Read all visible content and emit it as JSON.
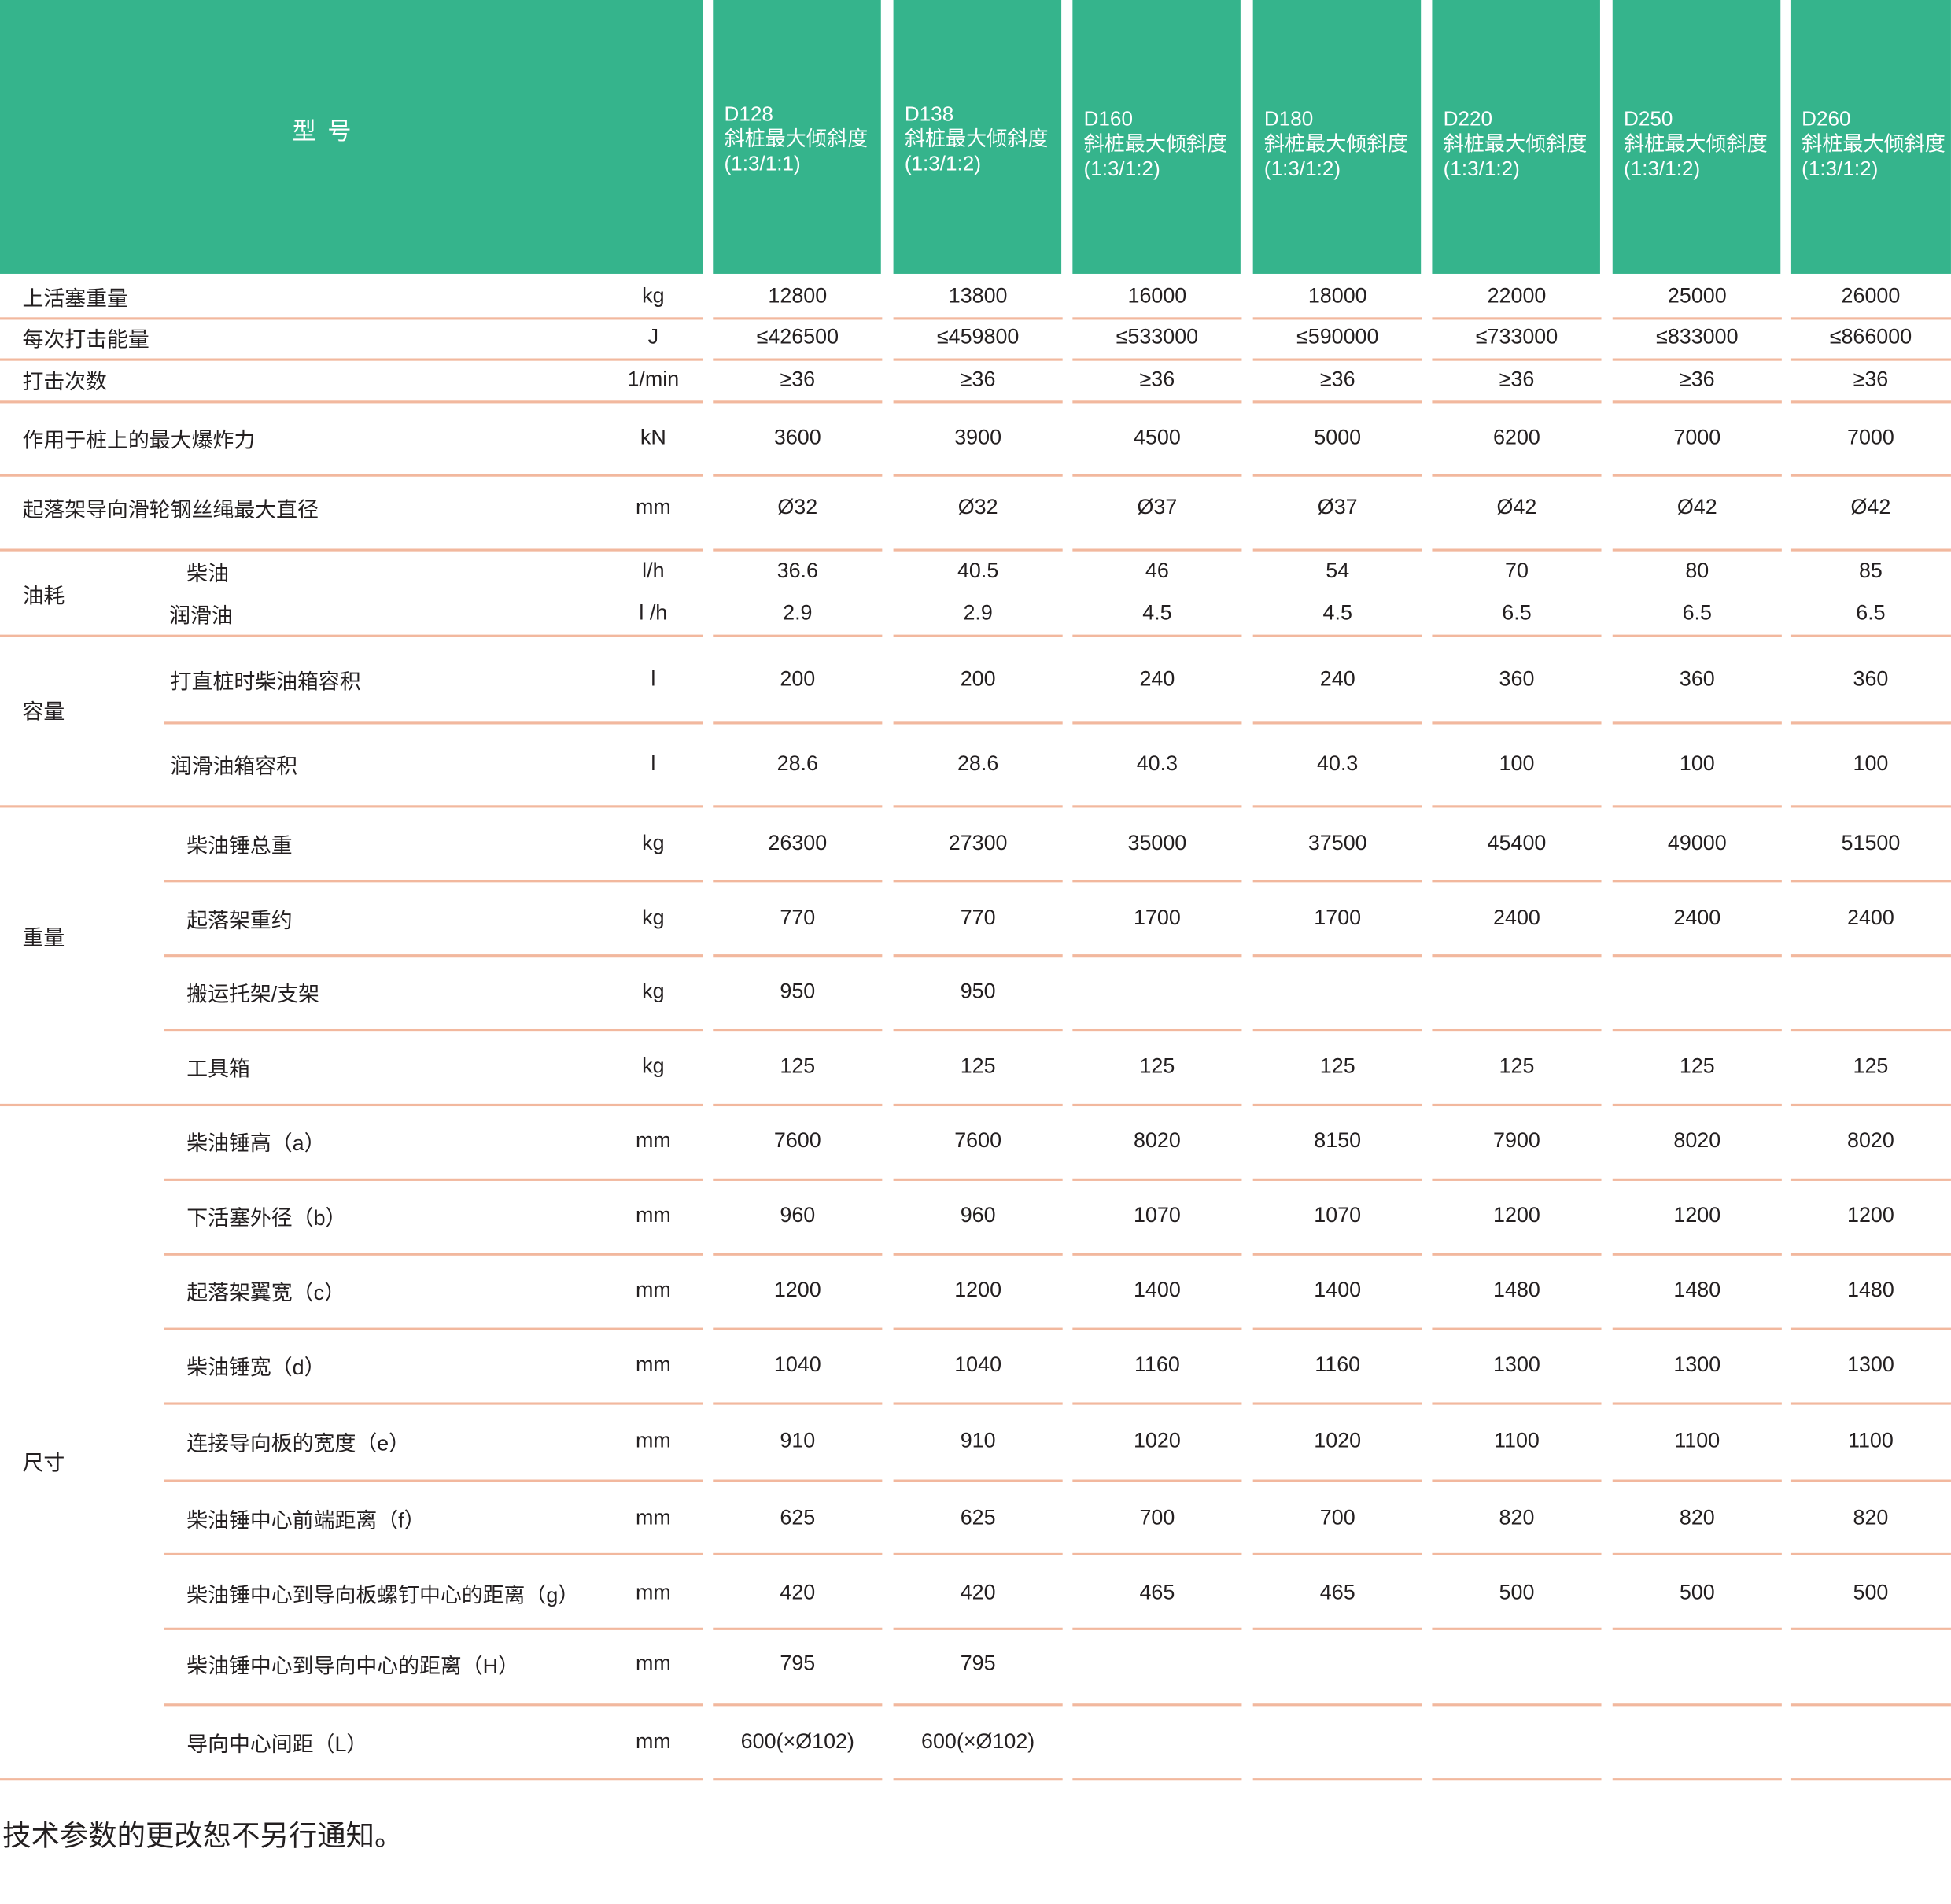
{
  "header": {
    "title": "型 号",
    "models": [
      {
        "name": "D128",
        "desc": "斜桩最大倾斜度",
        "ratio": "(1:3/1:1)"
      },
      {
        "name": "D138",
        "desc": "斜桩最大倾斜度",
        "ratio": "(1:3/1:2)"
      },
      {
        "name": "D160",
        "desc": "斜桩最大倾斜度",
        "ratio": "(1:3/1:2)"
      },
      {
        "name": "D180",
        "desc": "斜桩最大倾斜度",
        "ratio": "(1:3/1:2)"
      },
      {
        "name": "D220",
        "desc": "斜桩最大倾斜度",
        "ratio": "(1:3/1:2)"
      },
      {
        "name": "D250",
        "desc": "斜桩最大倾斜度",
        "ratio": "(1:3/1:2)"
      },
      {
        "name": "D260",
        "desc": "斜桩最大倾斜度",
        "ratio": "(1:3/1:2)"
      }
    ]
  },
  "groups": [
    "油耗",
    "容量",
    "重量",
    "尺寸"
  ],
  "rows": [
    {
      "label": "上活塞重量",
      "unit": "kg",
      "values": [
        "12800",
        "13800",
        "16000",
        "18000",
        "22000",
        "25000",
        "26000"
      ]
    },
    {
      "label": "每次打击能量",
      "unit": "J",
      "values": [
        "≤426500",
        "≤459800",
        "≤533000",
        "≤590000",
        "≤733000",
        "≤833000",
        "≤866000"
      ]
    },
    {
      "label": "打击次数",
      "unit": "1/min",
      "values": [
        "≥36",
        "≥36",
        "≥36",
        "≥36",
        "≥36",
        "≥36",
        "≥36"
      ]
    },
    {
      "label": "作用于桩上的最大爆炸力",
      "unit": "kN",
      "values": [
        "3600",
        "3900",
        "4500",
        "5000",
        "6200",
        "7000",
        "7000"
      ]
    },
    {
      "label": "起落架导向滑轮钢丝绳最大直径",
      "unit": "mm",
      "values": [
        "Ø32",
        "Ø32",
        "Ø37",
        "Ø37",
        "Ø42",
        "Ø42",
        "Ø42"
      ]
    },
    {
      "label": "柴油",
      "unit": "l/h",
      "values": [
        "36.6",
        "40.5",
        "46",
        "54",
        "70",
        "80",
        "85"
      ]
    },
    {
      "label": "润滑油",
      "unit": "l /h",
      "values": [
        "2.9",
        "2.9",
        "4.5",
        "4.5",
        "6.5",
        "6.5",
        "6.5"
      ]
    },
    {
      "label": "打直桩时柴油箱容积",
      "unit": "l",
      "values": [
        "200",
        "200",
        "240",
        "240",
        "360",
        "360",
        "360"
      ]
    },
    {
      "label": "润滑油箱容积",
      "unit": "l",
      "values": [
        "28.6",
        "28.6",
        "40.3",
        "40.3",
        "100",
        "100",
        "100"
      ]
    },
    {
      "label": "柴油锤总重",
      "unit": "kg",
      "values": [
        "26300",
        "27300",
        "35000",
        "37500",
        "45400",
        "49000",
        "51500"
      ]
    },
    {
      "label": "起落架重约",
      "unit": "kg",
      "values": [
        "770",
        "770",
        "1700",
        "1700",
        "2400",
        "2400",
        "2400"
      ]
    },
    {
      "label": "搬运托架/支架",
      "unit": "kg",
      "values": [
        "950",
        "950",
        "",
        "",
        "",
        "",
        ""
      ]
    },
    {
      "label": "工具箱",
      "unit": "kg",
      "values": [
        "125",
        "125",
        "125",
        "125",
        "125",
        "125",
        "125"
      ]
    },
    {
      "label": "柴油锤高（a）",
      "unit": "mm",
      "values": [
        "7600",
        "7600",
        "8020",
        "8150",
        "7900",
        "8020",
        "8020"
      ]
    },
    {
      "label": "下活塞外径（b）",
      "unit": "mm",
      "values": [
        "960",
        "960",
        "1070",
        "1070",
        "1200",
        "1200",
        "1200"
      ]
    },
    {
      "label": "起落架翼宽（c）",
      "unit": "mm",
      "values": [
        "1200",
        "1200",
        "1400",
        "1400",
        "1480",
        "1480",
        "1480"
      ]
    },
    {
      "label": "柴油锤宽（d）",
      "unit": "mm",
      "values": [
        "1040",
        "1040",
        "1160",
        "1160",
        "1300",
        "1300",
        "1300"
      ]
    },
    {
      "label": "连接导向板的宽度（e）",
      "unit": "mm",
      "values": [
        "910",
        "910",
        "1020",
        "1020",
        "1100",
        "1100",
        "1100"
      ]
    },
    {
      "label": "柴油锤中心前端距离（f）",
      "unit": "mm",
      "values": [
        "625",
        "625",
        "700",
        "700",
        "820",
        "820",
        "820"
      ]
    },
    {
      "label": "柴油锤中心到导向板螺钉中心的距离（g）",
      "unit": "mm",
      "values": [
        "420",
        "420",
        "465",
        "465",
        "500",
        "500",
        "500"
      ]
    },
    {
      "label": "柴油锤中心到导向中心的距离（H）",
      "unit": "mm",
      "values": [
        "795",
        "795",
        "",
        "",
        "",
        "",
        ""
      ]
    },
    {
      "label": "导向中心间距（L）",
      "unit": "mm",
      "values": [
        "600(×Ø102)",
        "600(×Ø102)",
        "",
        "",
        "",
        "",
        ""
      ]
    }
  ],
  "footer": "技术参数的更改恕不另行通知。",
  "colors": {
    "header": "#35b48c",
    "rule": "#f2b89e"
  }
}
